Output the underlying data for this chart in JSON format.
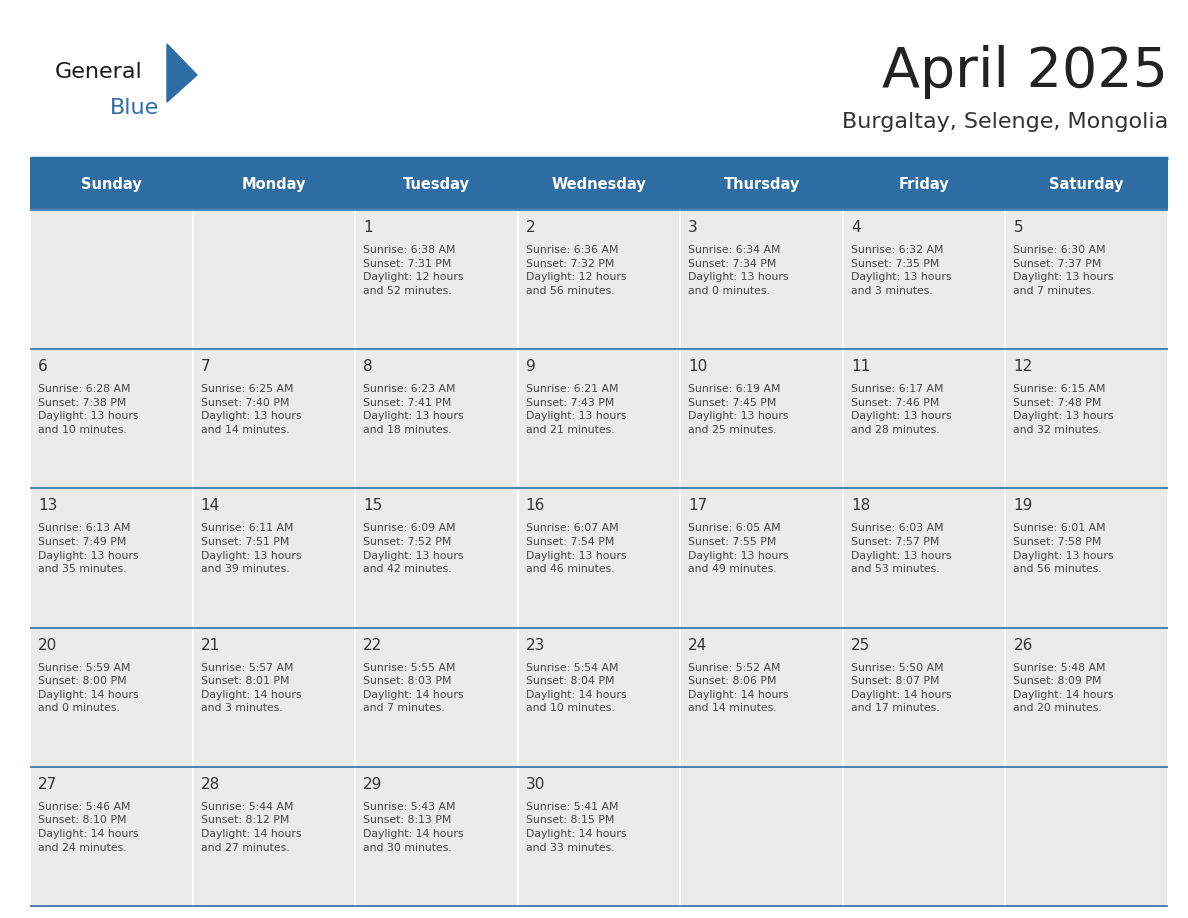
{
  "title": "April 2025",
  "subtitle": "Burgaltay, Selenge, Mongolia",
  "header_bg": "#2E6DA4",
  "header_text_color": "#FFFFFF",
  "cell_bg": "#EBEBEB",
  "day_names": [
    "Sunday",
    "Monday",
    "Tuesday",
    "Wednesday",
    "Thursday",
    "Friday",
    "Saturday"
  ],
  "title_color": "#222222",
  "subtitle_color": "#333333",
  "line_color": "#2E6DA4",
  "day_number_color": "#333333",
  "cell_text_color": "#444444",
  "logo_black": "#1a1a1a",
  "logo_blue": "#2E6DA4",
  "calendar": [
    [
      {
        "day": "",
        "info": ""
      },
      {
        "day": "",
        "info": ""
      },
      {
        "day": "1",
        "info": "Sunrise: 6:38 AM\nSunset: 7:31 PM\nDaylight: 12 hours\nand 52 minutes."
      },
      {
        "day": "2",
        "info": "Sunrise: 6:36 AM\nSunset: 7:32 PM\nDaylight: 12 hours\nand 56 minutes."
      },
      {
        "day": "3",
        "info": "Sunrise: 6:34 AM\nSunset: 7:34 PM\nDaylight: 13 hours\nand 0 minutes."
      },
      {
        "day": "4",
        "info": "Sunrise: 6:32 AM\nSunset: 7:35 PM\nDaylight: 13 hours\nand 3 minutes."
      },
      {
        "day": "5",
        "info": "Sunrise: 6:30 AM\nSunset: 7:37 PM\nDaylight: 13 hours\nand 7 minutes."
      }
    ],
    [
      {
        "day": "6",
        "info": "Sunrise: 6:28 AM\nSunset: 7:38 PM\nDaylight: 13 hours\nand 10 minutes."
      },
      {
        "day": "7",
        "info": "Sunrise: 6:25 AM\nSunset: 7:40 PM\nDaylight: 13 hours\nand 14 minutes."
      },
      {
        "day": "8",
        "info": "Sunrise: 6:23 AM\nSunset: 7:41 PM\nDaylight: 13 hours\nand 18 minutes."
      },
      {
        "day": "9",
        "info": "Sunrise: 6:21 AM\nSunset: 7:43 PM\nDaylight: 13 hours\nand 21 minutes."
      },
      {
        "day": "10",
        "info": "Sunrise: 6:19 AM\nSunset: 7:45 PM\nDaylight: 13 hours\nand 25 minutes."
      },
      {
        "day": "11",
        "info": "Sunrise: 6:17 AM\nSunset: 7:46 PM\nDaylight: 13 hours\nand 28 minutes."
      },
      {
        "day": "12",
        "info": "Sunrise: 6:15 AM\nSunset: 7:48 PM\nDaylight: 13 hours\nand 32 minutes."
      }
    ],
    [
      {
        "day": "13",
        "info": "Sunrise: 6:13 AM\nSunset: 7:49 PM\nDaylight: 13 hours\nand 35 minutes."
      },
      {
        "day": "14",
        "info": "Sunrise: 6:11 AM\nSunset: 7:51 PM\nDaylight: 13 hours\nand 39 minutes."
      },
      {
        "day": "15",
        "info": "Sunrise: 6:09 AM\nSunset: 7:52 PM\nDaylight: 13 hours\nand 42 minutes."
      },
      {
        "day": "16",
        "info": "Sunrise: 6:07 AM\nSunset: 7:54 PM\nDaylight: 13 hours\nand 46 minutes."
      },
      {
        "day": "17",
        "info": "Sunrise: 6:05 AM\nSunset: 7:55 PM\nDaylight: 13 hours\nand 49 minutes."
      },
      {
        "day": "18",
        "info": "Sunrise: 6:03 AM\nSunset: 7:57 PM\nDaylight: 13 hours\nand 53 minutes."
      },
      {
        "day": "19",
        "info": "Sunrise: 6:01 AM\nSunset: 7:58 PM\nDaylight: 13 hours\nand 56 minutes."
      }
    ],
    [
      {
        "day": "20",
        "info": "Sunrise: 5:59 AM\nSunset: 8:00 PM\nDaylight: 14 hours\nand 0 minutes."
      },
      {
        "day": "21",
        "info": "Sunrise: 5:57 AM\nSunset: 8:01 PM\nDaylight: 14 hours\nand 3 minutes."
      },
      {
        "day": "22",
        "info": "Sunrise: 5:55 AM\nSunset: 8:03 PM\nDaylight: 14 hours\nand 7 minutes."
      },
      {
        "day": "23",
        "info": "Sunrise: 5:54 AM\nSunset: 8:04 PM\nDaylight: 14 hours\nand 10 minutes."
      },
      {
        "day": "24",
        "info": "Sunrise: 5:52 AM\nSunset: 8:06 PM\nDaylight: 14 hours\nand 14 minutes."
      },
      {
        "day": "25",
        "info": "Sunrise: 5:50 AM\nSunset: 8:07 PM\nDaylight: 14 hours\nand 17 minutes."
      },
      {
        "day": "26",
        "info": "Sunrise: 5:48 AM\nSunset: 8:09 PM\nDaylight: 14 hours\nand 20 minutes."
      }
    ],
    [
      {
        "day": "27",
        "info": "Sunrise: 5:46 AM\nSunset: 8:10 PM\nDaylight: 14 hours\nand 24 minutes."
      },
      {
        "day": "28",
        "info": "Sunrise: 5:44 AM\nSunset: 8:12 PM\nDaylight: 14 hours\nand 27 minutes."
      },
      {
        "day": "29",
        "info": "Sunrise: 5:43 AM\nSunset: 8:13 PM\nDaylight: 14 hours\nand 30 minutes."
      },
      {
        "day": "30",
        "info": "Sunrise: 5:41 AM\nSunset: 8:15 PM\nDaylight: 14 hours\nand 33 minutes."
      },
      {
        "day": "",
        "info": ""
      },
      {
        "day": "",
        "info": ""
      },
      {
        "day": "",
        "info": ""
      }
    ]
  ]
}
